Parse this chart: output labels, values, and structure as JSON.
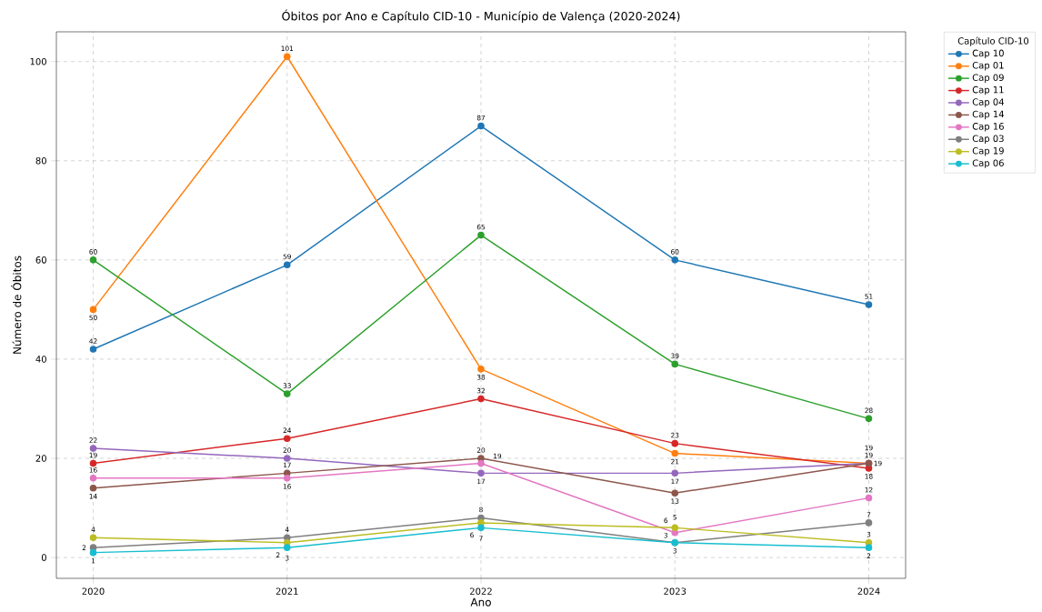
{
  "chart_data": {
    "type": "line",
    "title": "Óbitos por Ano e Capítulo CID-10 - Município de Valença (2020-2024)",
    "xlabel": "Ano",
    "ylabel": "Número de Óbitos",
    "legend_title": "Capítulo CID-10",
    "x": [
      2020,
      2021,
      2022,
      2023,
      2024
    ],
    "series": [
      {
        "name": "Cap 10",
        "color": "#1f77b4",
        "values": [
          42,
          59,
          87,
          60,
          51
        ]
      },
      {
        "name": "Cap 01",
        "color": "#ff7f0e",
        "values": [
          50,
          101,
          38,
          21,
          19
        ]
      },
      {
        "name": "Cap 09",
        "color": "#2ca02c",
        "values": [
          60,
          33,
          65,
          39,
          28
        ]
      },
      {
        "name": "Cap 11",
        "color": "#d62728",
        "values": [
          19,
          24,
          32,
          23,
          18
        ]
      },
      {
        "name": "Cap 04",
        "color": "#9467bd",
        "values": [
          22,
          20,
          17,
          17,
          19
        ]
      },
      {
        "name": "Cap 14",
        "color": "#8c564b",
        "values": [
          14,
          17,
          20,
          13,
          19
        ]
      },
      {
        "name": "Cap 16",
        "color": "#e377c2",
        "values": [
          16,
          16,
          19,
          5,
          12
        ]
      },
      {
        "name": "Cap 03",
        "color": "#7f7f7f",
        "values": [
          2,
          4,
          8,
          3,
          7
        ]
      },
      {
        "name": "Cap 19",
        "color": "#bcbd22",
        "values": [
          4,
          3,
          7,
          6,
          3
        ]
      },
      {
        "name": "Cap 06",
        "color": "#17becf",
        "values": [
          1,
          2,
          6,
          3,
          2
        ]
      }
    ],
    "xlim": [
      2019.81,
      2024.19
    ],
    "ylim": [
      -4.2,
      106
    ],
    "xticks": [
      2020,
      2021,
      2022,
      2023,
      2024
    ],
    "yticks": [
      0,
      20,
      40,
      60,
      80,
      100
    ],
    "grid": true,
    "legend": "top right",
    "marker": "circle",
    "line_style": "solid",
    "data_labels": true
  }
}
